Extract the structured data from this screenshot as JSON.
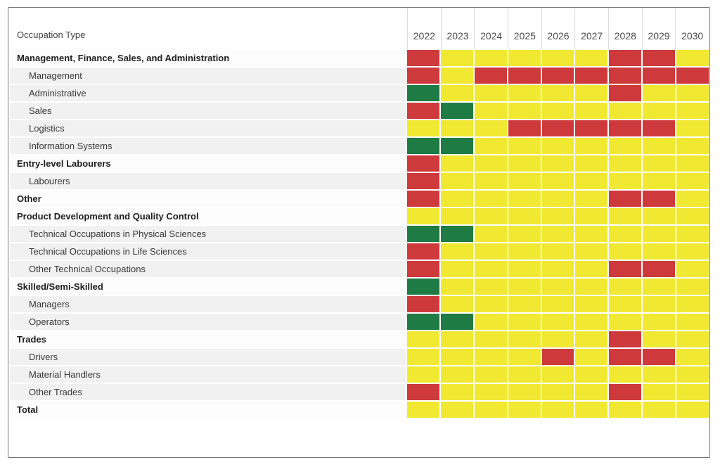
{
  "chart_data": {
    "type": "heatmap",
    "corner_label": "Occupation Type",
    "x_categories": [
      "2022",
      "2023",
      "2024",
      "2025",
      "2026",
      "2027",
      "2028",
      "2029",
      "2030"
    ],
    "color_scale": {
      "red": "#ce3a3c",
      "yellow": "#f1e832",
      "green": "#1e7b43"
    },
    "legend_note": "cell value is a categorical status color",
    "rows": [
      {
        "label": "Management, Finance, Sales, and Administration",
        "level": "parent",
        "values": [
          "red",
          "yellow",
          "yellow",
          "yellow",
          "yellow",
          "yellow",
          "red",
          "red",
          "yellow"
        ]
      },
      {
        "label": "Management",
        "level": "child",
        "values": [
          "red",
          "yellow",
          "red",
          "red",
          "red",
          "red",
          "red",
          "red",
          "red"
        ]
      },
      {
        "label": "Administrative",
        "level": "child",
        "values": [
          "green",
          "yellow",
          "yellow",
          "yellow",
          "yellow",
          "yellow",
          "red",
          "yellow",
          "yellow"
        ]
      },
      {
        "label": "Sales",
        "level": "child",
        "values": [
          "red",
          "green",
          "yellow",
          "yellow",
          "yellow",
          "yellow",
          "yellow",
          "yellow",
          "yellow"
        ]
      },
      {
        "label": "Logistics",
        "level": "child",
        "values": [
          "yellow",
          "yellow",
          "yellow",
          "red",
          "red",
          "red",
          "red",
          "red",
          "yellow"
        ]
      },
      {
        "label": "Information Systems",
        "level": "child",
        "values": [
          "green",
          "green",
          "yellow",
          "yellow",
          "yellow",
          "yellow",
          "yellow",
          "yellow",
          "yellow"
        ]
      },
      {
        "label": "Entry-level Labourers",
        "level": "parent",
        "values": [
          "red",
          "yellow",
          "yellow",
          "yellow",
          "yellow",
          "yellow",
          "yellow",
          "yellow",
          "yellow"
        ]
      },
      {
        "label": "Labourers",
        "level": "child",
        "values": [
          "red",
          "yellow",
          "yellow",
          "yellow",
          "yellow",
          "yellow",
          "yellow",
          "yellow",
          "yellow"
        ]
      },
      {
        "label": "Other",
        "level": "parent",
        "values": [
          "red",
          "yellow",
          "yellow",
          "yellow",
          "yellow",
          "yellow",
          "red",
          "red",
          "yellow"
        ]
      },
      {
        "label": "Product Development and Quality Control",
        "level": "parent",
        "values": [
          "yellow",
          "yellow",
          "yellow",
          "yellow",
          "yellow",
          "yellow",
          "yellow",
          "yellow",
          "yellow"
        ]
      },
      {
        "label": "Technical Occupations in Physical Sciences",
        "level": "child",
        "values": [
          "green",
          "green",
          "yellow",
          "yellow",
          "yellow",
          "yellow",
          "yellow",
          "yellow",
          "yellow"
        ]
      },
      {
        "label": "Technical Occupations in Life Sciences",
        "level": "child",
        "values": [
          "red",
          "yellow",
          "yellow",
          "yellow",
          "yellow",
          "yellow",
          "yellow",
          "yellow",
          "yellow"
        ]
      },
      {
        "label": "Other Technical Occupations",
        "level": "child",
        "values": [
          "red",
          "yellow",
          "yellow",
          "yellow",
          "yellow",
          "yellow",
          "red",
          "red",
          "yellow"
        ]
      },
      {
        "label": "Skilled/Semi-Skilled",
        "level": "parent",
        "values": [
          "green",
          "yellow",
          "yellow",
          "yellow",
          "yellow",
          "yellow",
          "yellow",
          "yellow",
          "yellow"
        ]
      },
      {
        "label": "Managers",
        "level": "child",
        "values": [
          "red",
          "yellow",
          "yellow",
          "yellow",
          "yellow",
          "yellow",
          "yellow",
          "yellow",
          "yellow"
        ]
      },
      {
        "label": "Operators",
        "level": "child",
        "values": [
          "green",
          "green",
          "yellow",
          "yellow",
          "yellow",
          "yellow",
          "yellow",
          "yellow",
          "yellow"
        ]
      },
      {
        "label": "Trades",
        "level": "parent",
        "values": [
          "yellow",
          "yellow",
          "yellow",
          "yellow",
          "yellow",
          "yellow",
          "red",
          "yellow",
          "yellow"
        ]
      },
      {
        "label": "Drivers",
        "level": "child",
        "values": [
          "yellow",
          "yellow",
          "yellow",
          "yellow",
          "red",
          "yellow",
          "red",
          "red",
          "yellow"
        ]
      },
      {
        "label": "Material Handlers",
        "level": "child",
        "values": [
          "yellow",
          "yellow",
          "yellow",
          "yellow",
          "yellow",
          "yellow",
          "yellow",
          "yellow",
          "yellow"
        ]
      },
      {
        "label": "Other Trades",
        "level": "child",
        "values": [
          "red",
          "yellow",
          "yellow",
          "yellow",
          "yellow",
          "yellow",
          "red",
          "yellow",
          "yellow"
        ]
      },
      {
        "label": "Total",
        "level": "parent",
        "values": [
          "yellow",
          "yellow",
          "yellow",
          "yellow",
          "yellow",
          "yellow",
          "yellow",
          "yellow",
          "yellow"
        ]
      }
    ]
  }
}
